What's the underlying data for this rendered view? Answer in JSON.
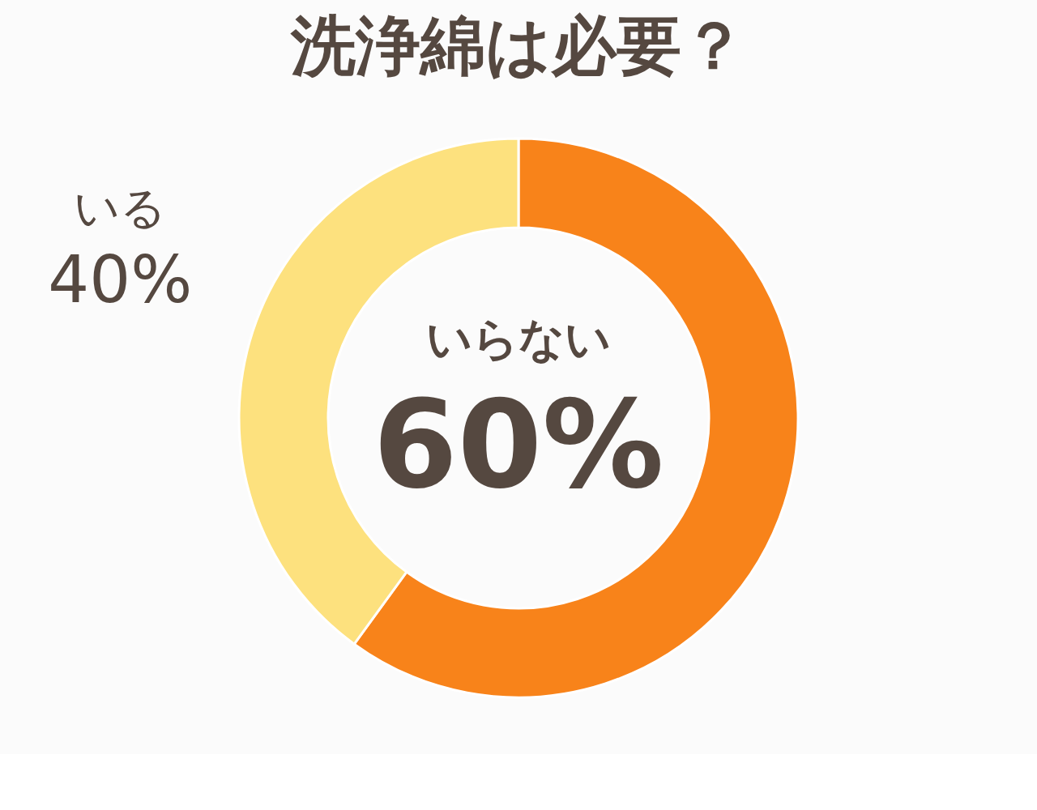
{
  "chart_data": {
    "type": "donut",
    "title": "洗浄綿は必要？",
    "categories": [
      "いらない",
      "いる"
    ],
    "values": [
      60,
      40
    ],
    "colors": [
      "#f8831a",
      "#fde17e"
    ],
    "value_labels": [
      "60%",
      "40%"
    ],
    "legend": false
  }
}
